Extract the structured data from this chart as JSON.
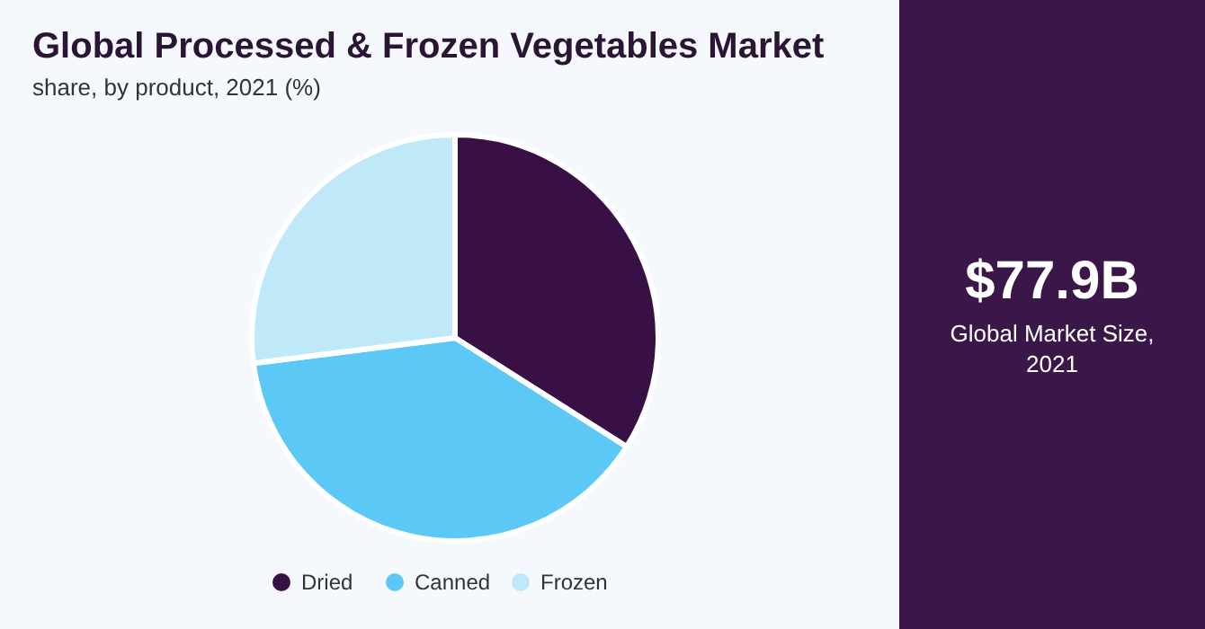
{
  "chart_data": [
    {
      "type": "pie",
      "title": "Global Processed & Frozen Vegetables Market",
      "subtitle": "share, by product, 2021 (%)",
      "categories": [
        "Dried",
        "Canned",
        "Frozen"
      ],
      "values": [
        34,
        39,
        27
      ],
      "colors": [
        "#381045",
        "#5bc8f5",
        "#bfe9f9"
      ],
      "legend": "bottom"
    },
    {
      "type": "other",
      "title": "$77.9B",
      "annotations": [
        "Global Market Size, 2021"
      ]
    }
  ]
}
